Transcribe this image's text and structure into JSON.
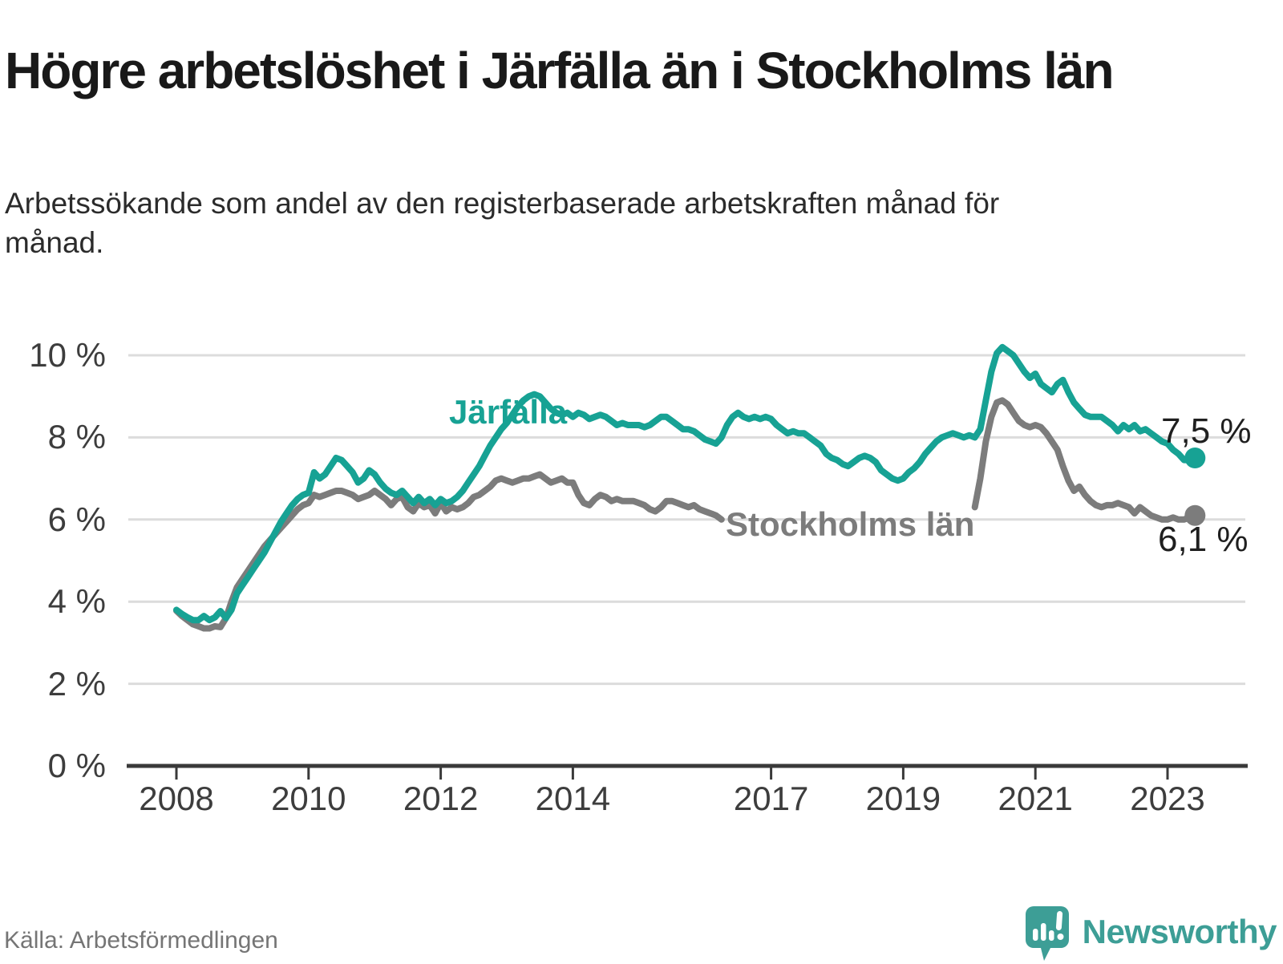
{
  "header": {
    "title": "Högre arbetslöshet i Järfälla än i Stockholms län",
    "subtitle": "Arbetssökande som andel av den registerbaserade arbetskraften månad för månad."
  },
  "source": {
    "label": "Källa: Arbetsförmedlingen"
  },
  "branding": {
    "name": "Newsworthy",
    "logo_icon": "newsworthy-speech-bubble-chart-icon",
    "logo_color": "#3d9e96"
  },
  "chart_data": {
    "type": "line",
    "title": "Högre arbetslöshet i Järfälla än i Stockholms län",
    "unit": "%",
    "grid": true,
    "x_start": "2008-01",
    "points_per_month": 1,
    "x_axis": {
      "ticks": [
        {
          "year": 2008,
          "label": "2008"
        },
        {
          "year": 2010,
          "label": "2010"
        },
        {
          "year": 2012,
          "label": "2012"
        },
        {
          "year": 2014,
          "label": "2014"
        },
        {
          "year": 2017,
          "label": "2017"
        },
        {
          "year": 2019,
          "label": "2019"
        },
        {
          "year": 2021,
          "label": "2021"
        },
        {
          "year": 2023,
          "label": "2023"
        }
      ]
    },
    "y_axis": {
      "ticks": [
        {
          "value": 10,
          "label": "10 %"
        },
        {
          "value": 8,
          "label": "8 %"
        },
        {
          "value": 6,
          "label": "6 %"
        },
        {
          "value": 4,
          "label": "4 %"
        },
        {
          "value": 2,
          "label": "2 %"
        },
        {
          "value": 0,
          "label": "0 %"
        }
      ],
      "ylim": [
        0,
        10.5
      ]
    },
    "colors": {
      "jarfalla": "#17a294",
      "stockholms_lan": "#7c7c7c",
      "gridline": "#dcdcdc",
      "axis": "#3a3a3a"
    },
    "series": [
      {
        "name": "Järfälla",
        "color": "#17a294",
        "end_value": 7.5,
        "end_label": "7,5 %",
        "values": [
          3.8,
          3.7,
          3.62,
          3.55,
          3.55,
          3.65,
          3.55,
          3.62,
          3.77,
          3.6,
          3.8,
          4.2,
          4.4,
          4.6,
          4.8,
          5.0,
          5.2,
          5.45,
          5.7,
          5.95,
          6.15,
          6.35,
          6.5,
          6.6,
          6.65,
          7.15,
          7.0,
          7.1,
          7.3,
          7.5,
          7.45,
          7.3,
          7.15,
          6.9,
          7.0,
          7.2,
          7.1,
          6.9,
          6.75,
          6.65,
          6.6,
          6.7,
          6.55,
          6.4,
          6.55,
          6.4,
          6.5,
          6.35,
          6.5,
          6.4,
          6.45,
          6.55,
          6.7,
          6.9,
          7.1,
          7.3,
          7.55,
          7.8,
          8.0,
          8.2,
          8.35,
          8.55,
          8.75,
          8.9,
          9.0,
          9.05,
          9.0,
          8.85,
          8.7,
          8.6,
          8.55,
          8.6,
          8.5,
          8.6,
          8.55,
          8.45,
          8.5,
          8.55,
          8.5,
          8.4,
          8.3,
          8.35,
          8.3,
          8.3,
          8.3,
          8.25,
          8.3,
          8.4,
          8.5,
          8.5,
          8.4,
          8.3,
          8.2,
          8.2,
          8.15,
          8.05,
          7.95,
          7.9,
          7.85,
          8.0,
          8.3,
          8.5,
          8.6,
          8.5,
          8.45,
          8.5,
          8.45,
          8.5,
          8.45,
          8.3,
          8.2,
          8.1,
          8.15,
          8.1,
          8.1,
          8.0,
          7.9,
          7.8,
          7.6,
          7.5,
          7.45,
          7.35,
          7.3,
          7.4,
          7.5,
          7.55,
          7.5,
          7.4,
          7.2,
          7.1,
          7.0,
          6.95,
          7.0,
          7.15,
          7.25,
          7.4,
          7.6,
          7.75,
          7.9,
          8.0,
          8.05,
          8.1,
          8.05,
          8.0,
          8.05,
          8.0,
          8.2,
          8.9,
          9.6,
          10.05,
          10.2,
          10.1,
          10.0,
          9.8,
          9.6,
          9.45,
          9.55,
          9.3,
          9.2,
          9.1,
          9.3,
          9.4,
          9.1,
          8.85,
          8.7,
          8.55,
          8.5,
          8.5,
          8.5,
          8.4,
          8.3,
          8.15,
          8.3,
          8.2,
          8.3,
          8.15,
          8.2,
          8.1,
          8.0,
          7.9,
          7.85,
          7.7,
          7.6,
          7.45,
          7.45,
          7.5
        ]
      },
      {
        "name": "Stockholms län",
        "color": "#7c7c7c",
        "end_value": 6.1,
        "end_label": "6,1 %",
        "values": [
          3.78,
          3.65,
          3.55,
          3.45,
          3.4,
          3.35,
          3.35,
          3.4,
          3.38,
          3.6,
          4.0,
          4.35,
          4.55,
          4.75,
          4.95,
          5.15,
          5.35,
          5.5,
          5.65,
          5.8,
          5.95,
          6.1,
          6.25,
          6.35,
          6.4,
          6.6,
          6.55,
          6.6,
          6.65,
          6.7,
          6.7,
          6.65,
          6.6,
          6.5,
          6.55,
          6.6,
          6.7,
          6.6,
          6.5,
          6.35,
          6.5,
          6.55,
          6.3,
          6.2,
          6.4,
          6.3,
          6.35,
          6.15,
          6.4,
          6.2,
          6.3,
          6.25,
          6.3,
          6.4,
          6.55,
          6.6,
          6.7,
          6.8,
          6.95,
          7.0,
          6.95,
          6.9,
          6.95,
          7.0,
          7.0,
          7.05,
          7.1,
          7.0,
          6.9,
          6.95,
          7.0,
          6.9,
          6.9,
          6.6,
          6.4,
          6.35,
          6.5,
          6.6,
          6.55,
          6.45,
          6.5,
          6.45,
          6.45,
          6.45,
          6.4,
          6.35,
          6.25,
          6.2,
          6.3,
          6.45,
          6.45,
          6.4,
          6.35,
          6.3,
          6.35,
          6.25,
          6.2,
          6.15,
          6.1,
          6.0,
          null,
          null,
          null,
          null,
          null,
          null,
          null,
          null,
          null,
          null,
          null,
          null,
          null,
          null,
          null,
          null,
          null,
          null,
          null,
          null,
          null,
          null,
          null,
          null,
          null,
          null,
          null,
          null,
          null,
          null,
          null,
          null,
          null,
          null,
          null,
          null,
          null,
          null,
          null,
          null,
          null,
          null,
          null,
          null,
          null,
          6.3,
          7.0,
          7.9,
          8.5,
          8.85,
          8.9,
          8.8,
          8.6,
          8.4,
          8.3,
          8.25,
          8.3,
          8.25,
          8.1,
          7.9,
          7.7,
          7.3,
          6.95,
          6.7,
          6.8,
          6.6,
          6.45,
          6.35,
          6.3,
          6.35,
          6.35,
          6.4,
          6.35,
          6.3,
          6.15,
          6.3,
          6.2,
          6.1,
          6.05,
          6.0,
          6.0,
          6.05,
          6.0,
          6.0,
          6.05,
          6.1
        ]
      }
    ]
  }
}
